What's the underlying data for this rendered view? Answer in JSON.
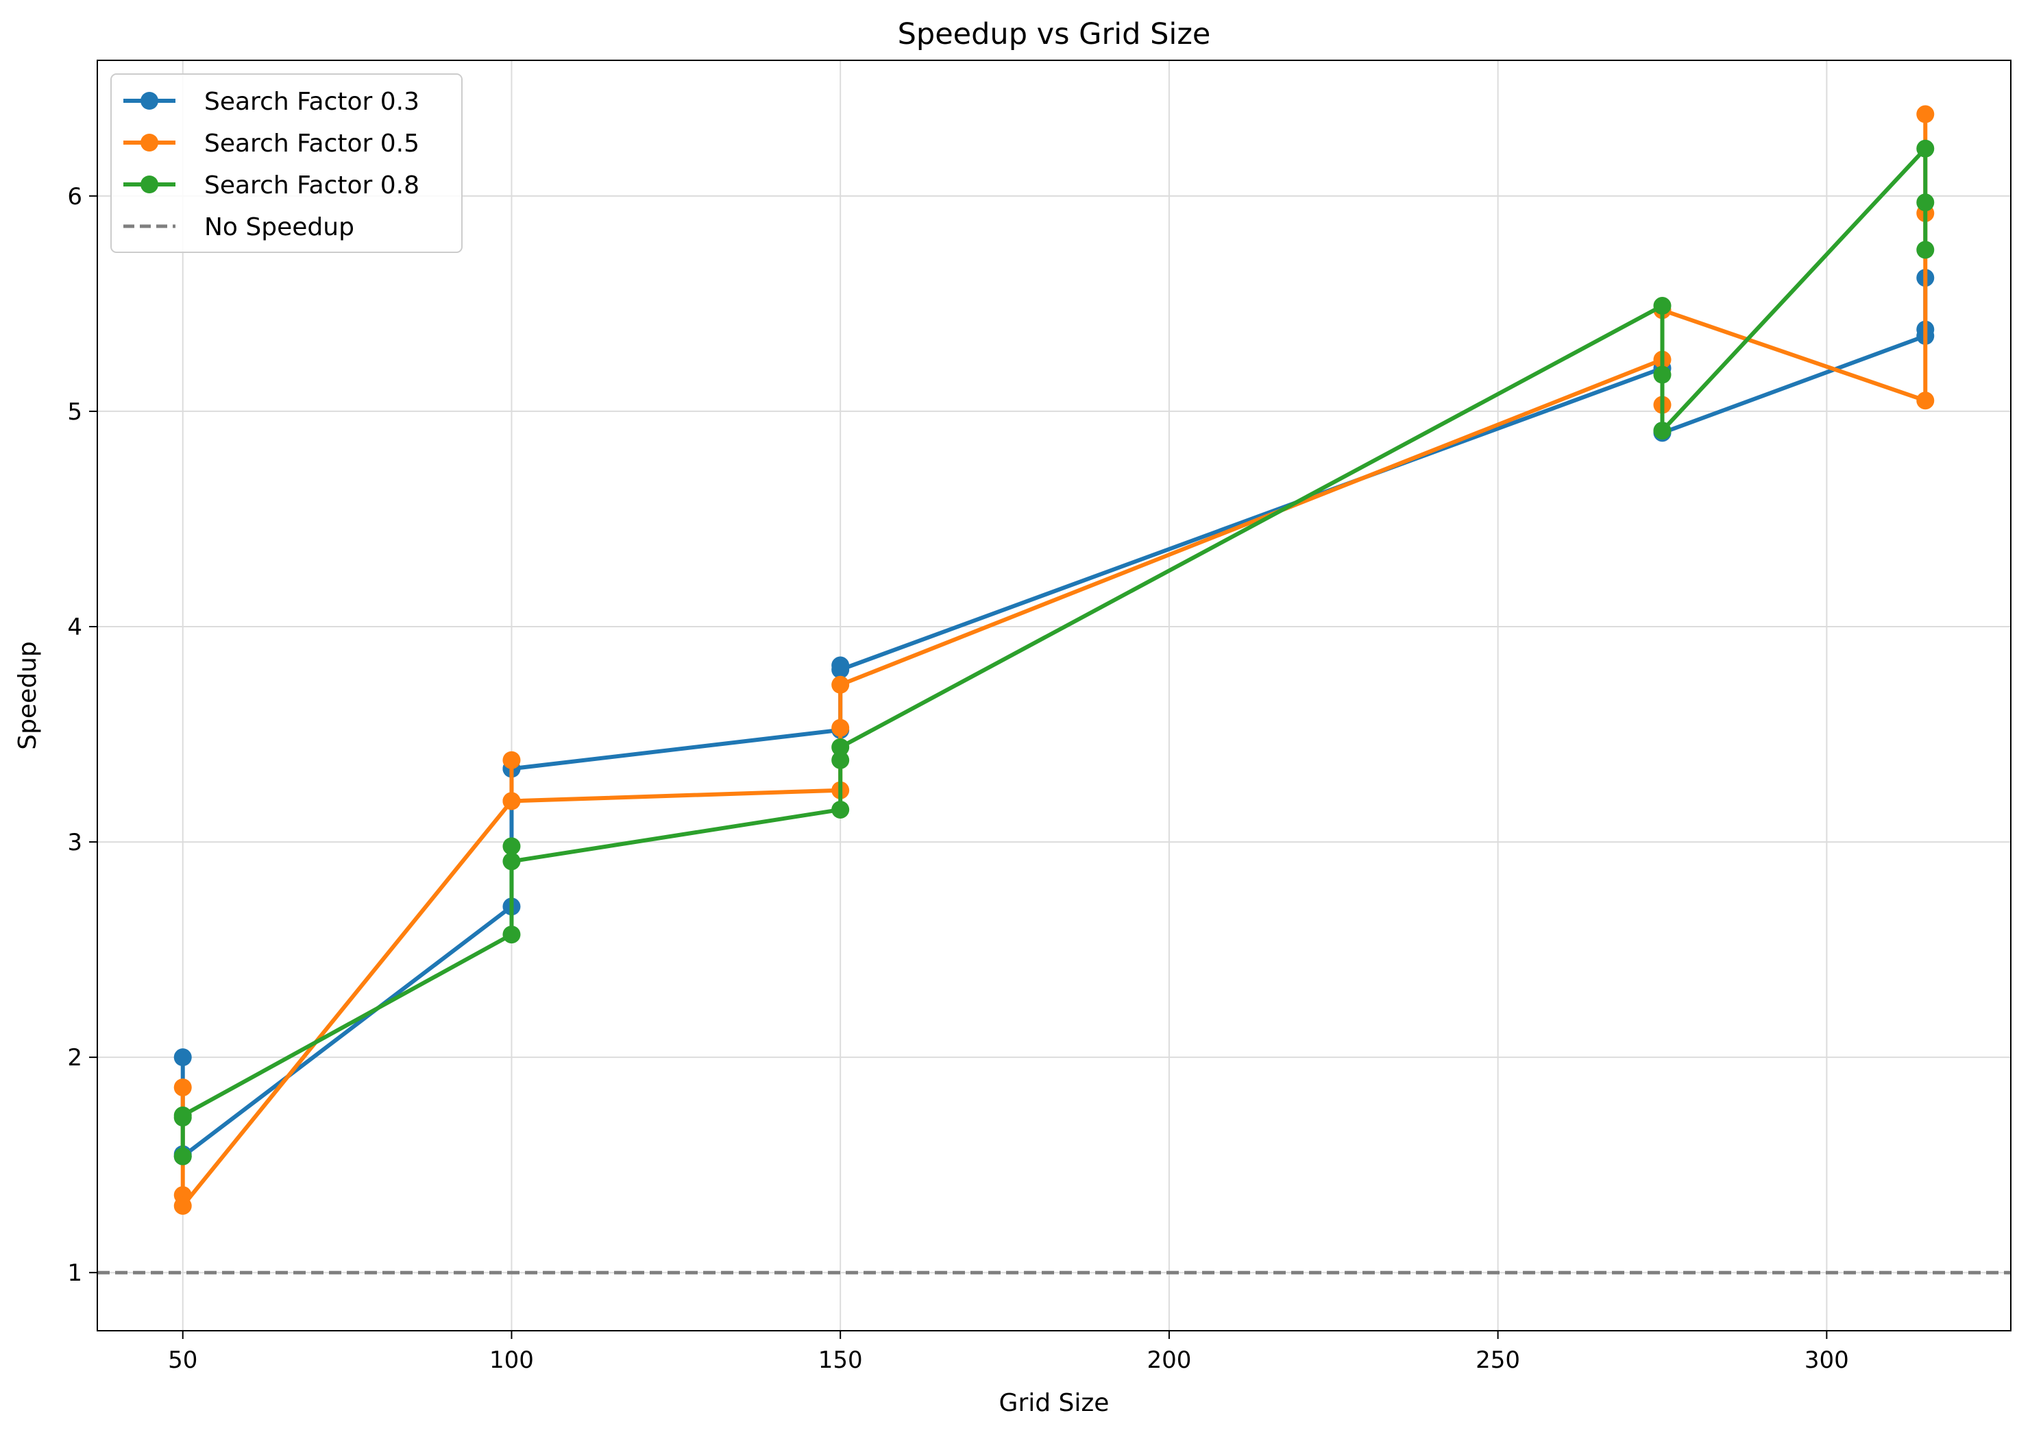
{
  "chart_data": {
    "type": "line",
    "title": "Speedup vs Grid Size",
    "xlabel": "Grid Size",
    "ylabel": "Speedup",
    "xlim": [
      37,
      328
    ],
    "ylim": [
      0.73,
      6.63
    ],
    "xticks": [
      50,
      100,
      150,
      200,
      250,
      300
    ],
    "yticks": [
      1,
      2,
      3,
      4,
      5,
      6
    ],
    "grid": true,
    "legend_position": "top-left",
    "series": [
      {
        "name": "Search Factor 0.3",
        "color": "#1f77b4",
        "points": [
          [
            50,
            2.0
          ],
          [
            50,
            1.55
          ],
          [
            50,
            1.54
          ],
          [
            100,
            2.7
          ],
          [
            100,
            3.34
          ],
          [
            100,
            3.34
          ],
          [
            150,
            3.52
          ],
          [
            150,
            3.82
          ],
          [
            150,
            3.8
          ],
          [
            275,
            5.2
          ],
          [
            275,
            4.91
          ],
          [
            275,
            4.9
          ],
          [
            315,
            5.35
          ],
          [
            315,
            5.38
          ],
          [
            315,
            5.62
          ]
        ]
      },
      {
        "name": "Search Factor 0.5",
        "color": "#ff7f0e",
        "points": [
          [
            50,
            1.86
          ],
          [
            50,
            1.36
          ],
          [
            50,
            1.31
          ],
          [
            100,
            3.19
          ],
          [
            100,
            3.38
          ],
          [
            100,
            3.19
          ],
          [
            150,
            3.24
          ],
          [
            150,
            3.53
          ],
          [
            150,
            3.73
          ],
          [
            275,
            5.24
          ],
          [
            275,
            5.03
          ],
          [
            275,
            5.47
          ],
          [
            315,
            5.05
          ],
          [
            315,
            5.92
          ],
          [
            315,
            6.38
          ]
        ]
      },
      {
        "name": "Search Factor 0.8",
        "color": "#2ca02c",
        "points": [
          [
            50,
            1.54
          ],
          [
            50,
            1.72
          ],
          [
            50,
            1.73
          ],
          [
            100,
            2.57
          ],
          [
            100,
            2.98
          ],
          [
            100,
            2.91
          ],
          [
            150,
            3.15
          ],
          [
            150,
            3.38
          ],
          [
            150,
            3.44
          ],
          [
            275,
            5.49
          ],
          [
            275,
            5.17
          ],
          [
            275,
            4.91
          ],
          [
            315,
            6.22
          ],
          [
            315,
            5.97
          ],
          [
            315,
            5.75
          ]
        ]
      }
    ],
    "reference_line": {
      "name": "No Speedup",
      "y": 1,
      "color": "#7f7f7f",
      "style": "dashed"
    }
  }
}
